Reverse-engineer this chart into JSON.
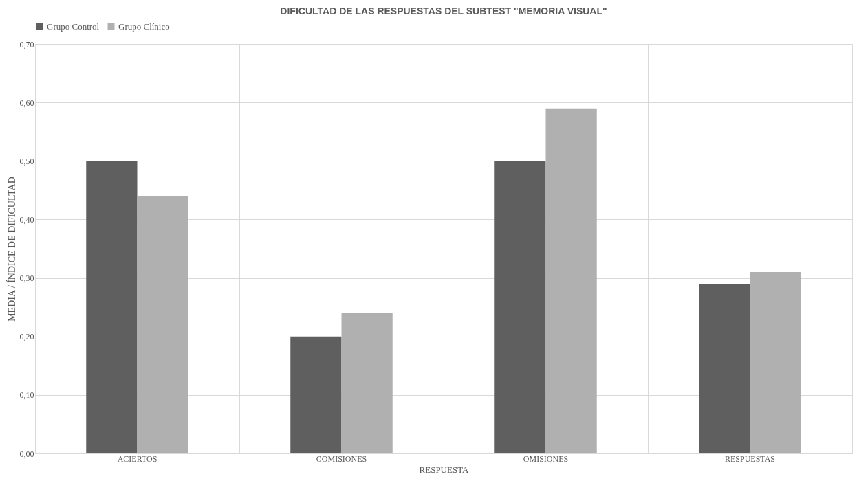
{
  "chart_data": {
    "type": "bar",
    "title": "DIFICULTAD DE LAS RESPUESTAS DEL SUBTEST \"MEMORIA VISUAL\"",
    "xlabel": "RESPUESTA",
    "ylabel": "MEDIA / ÍNDICE DE DIFICULTAD",
    "categories": [
      "ACIERTOS",
      "COMISIONES",
      "OMISIONES",
      "RESPUESTAS"
    ],
    "series": [
      {
        "name": "Grupo Control",
        "color": "#5f5f5f",
        "values": [
          0.5,
          0.2,
          0.5,
          0.29
        ]
      },
      {
        "name": "Grupo Clínico",
        "color": "#b0b0b0",
        "values": [
          0.44,
          0.24,
          0.59,
          0.31
        ]
      }
    ],
    "ylim": [
      0,
      0.7
    ],
    "yticks": [
      {
        "value": 0,
        "label": "0,00"
      },
      {
        "value": 0.1,
        "label": "0,10"
      },
      {
        "value": 0.2,
        "label": "0,20"
      },
      {
        "value": 0.3,
        "label": "0,30"
      },
      {
        "value": 0.4,
        "label": "0,40"
      },
      {
        "value": 0.5,
        "label": "0,50"
      },
      {
        "value": 0.6,
        "label": "0,60"
      },
      {
        "value": 0.7,
        "label": "0,70"
      }
    ],
    "grid": true,
    "legend": "top"
  }
}
